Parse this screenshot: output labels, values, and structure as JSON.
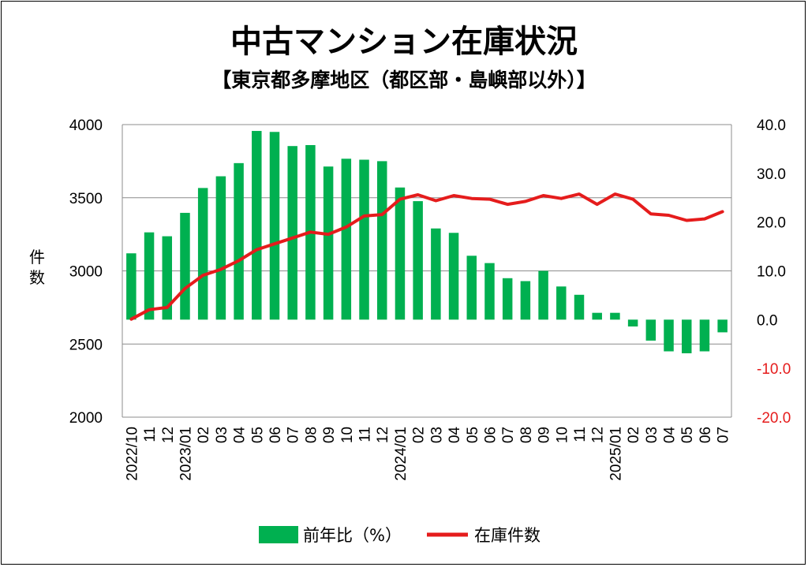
{
  "chart_data": {
    "type": "bar-line-combo",
    "title": "中古マンション在庫状況",
    "subtitle": "【東京都多摩地区（都区部・島嶼部以外）】",
    "ylabel_left": "件数",
    "ylim_left": [
      2000,
      4000
    ],
    "yticks_left": [
      "4000",
      "3500",
      "3000",
      "2500",
      "2000"
    ],
    "ylim_right": [
      -20,
      40
    ],
    "yticks_right_positive": [
      "40.0",
      "30.0",
      "20.0",
      "10.0",
      "0.0"
    ],
    "yticks_right_negative": [
      "-10.0",
      "-20.0"
    ],
    "grid": "horizontal",
    "legend_position": "bottom",
    "categories": [
      "2022/10",
      "11",
      "12",
      "2023/01",
      "02",
      "03",
      "04",
      "05",
      "06",
      "07",
      "08",
      "09",
      "10",
      "11",
      "12",
      "2024/01",
      "02",
      "03",
      "04",
      "05",
      "06",
      "07",
      "08",
      "09",
      "10",
      "11",
      "12",
      "2025/01",
      "02",
      "03",
      "04",
      "05",
      "06",
      "07"
    ],
    "series": [
      {
        "name": "前年比（%）",
        "type": "bar",
        "axis": "right",
        "color": "#00b050",
        "values": [
          13.6,
          17.9,
          17.1,
          21.9,
          27.0,
          29.4,
          32.1,
          38.7,
          38.5,
          35.6,
          35.8,
          31.4,
          33.0,
          32.8,
          32.5,
          27.1,
          24.3,
          18.7,
          17.8,
          13.1,
          11.6,
          8.5,
          7.9,
          10.0,
          6.8,
          5.1,
          1.4,
          1.4,
          -1.4,
          -4.3,
          -6.5,
          -6.9,
          -6.5,
          -2.6
        ]
      },
      {
        "name": "在庫件数",
        "type": "line",
        "axis": "left",
        "color": "#e51c1c",
        "values": [
          2670,
          2735,
          2750,
          2880,
          2970,
          3010,
          3070,
          3145,
          3185,
          3225,
          3265,
          3250,
          3300,
          3375,
          3385,
          3490,
          3520,
          3480,
          3515,
          3495,
          3490,
          3455,
          3475,
          3515,
          3495,
          3525,
          3455,
          3525,
          3490,
          3390,
          3380,
          3345,
          3355,
          3405
        ]
      }
    ]
  }
}
